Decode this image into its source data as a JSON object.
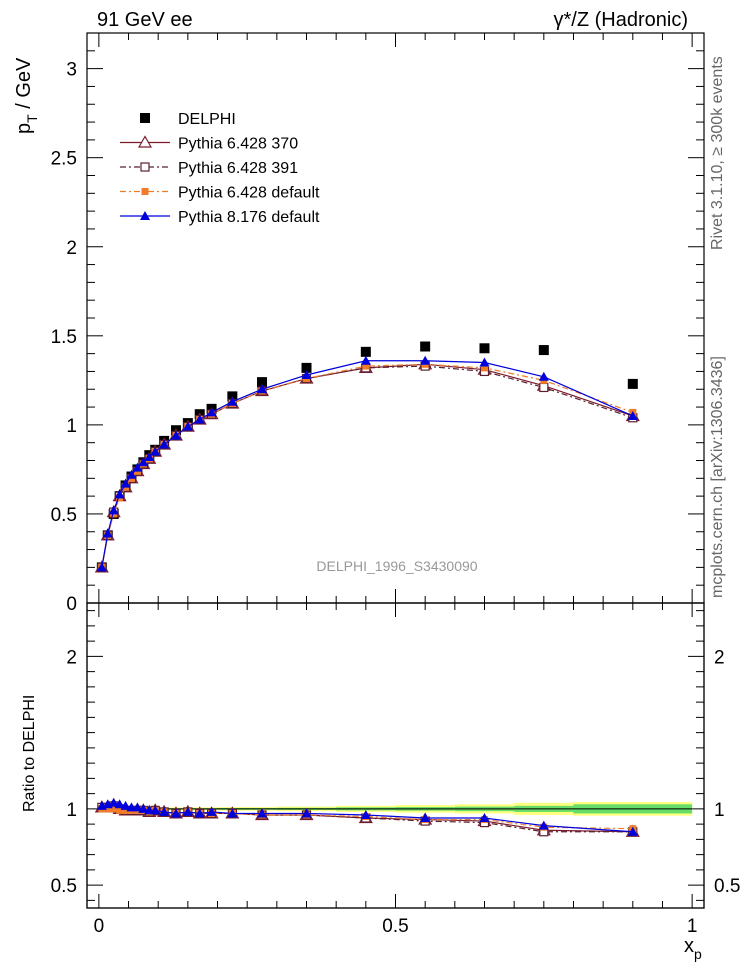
{
  "header": {
    "left": "91 GeV ee",
    "right": "γ*/Z (Hadronic)"
  },
  "side_text": {
    "rivet": "Rivet 3.1.10, ≥ 300k events",
    "mcplots": "mcplots.cern.ch [arXiv:1306.3436]"
  },
  "watermark": "DELPHI_1996_S3430090",
  "colors": {
    "data": "#000000",
    "p370": "#7b1c2c",
    "p391": "#5a2030",
    "p6def": "#f07c2a",
    "p8def": "#0000dd",
    "band_outer": "#ffff80",
    "band_inner": "#66dd66"
  },
  "chart_data": [
    {
      "type": "line",
      "panel": "main",
      "title": "",
      "xlabel": "x_p",
      "ylabel": "p_T / GeV",
      "xlim": [
        -0.02,
        1.02
      ],
      "ylim": [
        0,
        3.2
      ],
      "yticks": [
        0,
        0.5,
        1,
        1.5,
        2,
        2.5,
        3
      ],
      "ytick_labels": [
        "0",
        "0.5",
        "1",
        "1.5",
        "2",
        "2.5",
        "3"
      ],
      "legend_position": "top-left",
      "x": [
        0.005,
        0.015,
        0.025,
        0.035,
        0.045,
        0.055,
        0.065,
        0.075,
        0.085,
        0.095,
        0.11,
        0.13,
        0.15,
        0.17,
        0.19,
        0.225,
        0.275,
        0.35,
        0.45,
        0.55,
        0.65,
        0.75,
        0.9
      ],
      "series": [
        {
          "name": "DELPHI",
          "marker": "filled-square",
          "values": [
            0.2,
            0.38,
            0.5,
            0.6,
            0.66,
            0.71,
            0.75,
            0.79,
            0.83,
            0.86,
            0.91,
            0.97,
            1.01,
            1.06,
            1.09,
            1.16,
            1.24,
            1.32,
            1.41,
            1.44,
            1.43,
            1.42,
            1.23
          ]
        },
        {
          "name": "Pythia 6.428 370",
          "marker": "open-triangle",
          "values": [
            0.2,
            0.38,
            0.51,
            0.6,
            0.65,
            0.7,
            0.74,
            0.78,
            0.81,
            0.85,
            0.89,
            0.94,
            0.99,
            1.03,
            1.06,
            1.12,
            1.19,
            1.26,
            1.32,
            1.34,
            1.31,
            1.22,
            1.05
          ]
        },
        {
          "name": "Pythia 6.428 391",
          "marker": "open-square",
          "values": [
            0.2,
            0.38,
            0.51,
            0.6,
            0.65,
            0.7,
            0.74,
            0.78,
            0.81,
            0.85,
            0.89,
            0.94,
            0.99,
            1.03,
            1.06,
            1.12,
            1.19,
            1.26,
            1.32,
            1.33,
            1.3,
            1.21,
            1.04
          ]
        },
        {
          "name": "Pythia 6.428 default",
          "marker": "filled-square-small",
          "values": [
            0.2,
            0.38,
            0.5,
            0.59,
            0.65,
            0.7,
            0.74,
            0.78,
            0.81,
            0.85,
            0.89,
            0.94,
            0.99,
            1.03,
            1.06,
            1.12,
            1.19,
            1.26,
            1.33,
            1.34,
            1.32,
            1.25,
            1.07
          ]
        },
        {
          "name": "Pythia 8.176 default",
          "marker": "filled-triangle",
          "values": [
            0.2,
            0.39,
            0.52,
            0.61,
            0.67,
            0.72,
            0.76,
            0.79,
            0.82,
            0.85,
            0.89,
            0.94,
            0.99,
            1.03,
            1.07,
            1.13,
            1.2,
            1.28,
            1.36,
            1.36,
            1.35,
            1.27,
            1.05
          ]
        }
      ]
    },
    {
      "type": "line",
      "panel": "ratio",
      "xlabel": "x_p",
      "ylabel": "Ratio to DELPHI",
      "xlim": [
        -0.02,
        1.02
      ],
      "ylim": [
        0.35,
        2.35
      ],
      "yticks": [
        0.5,
        1,
        2
      ],
      "ytick_labels": [
        "0.5",
        "1",
        "2"
      ],
      "xticks": [
        0,
        0.5,
        1
      ],
      "xtick_labels": [
        "0",
        "0.5",
        "1"
      ],
      "x": [
        0.005,
        0.015,
        0.025,
        0.035,
        0.045,
        0.055,
        0.065,
        0.075,
        0.085,
        0.095,
        0.11,
        0.13,
        0.15,
        0.17,
        0.19,
        0.225,
        0.275,
        0.35,
        0.45,
        0.55,
        0.65,
        0.75,
        0.9
      ],
      "uncertainty_band": {
        "bins": [
          [
            0.0,
            0.2,
            0.01,
            0.005
          ],
          [
            0.2,
            0.3,
            0.012,
            0.006
          ],
          [
            0.3,
            0.4,
            0.015,
            0.007
          ],
          [
            0.4,
            0.5,
            0.02,
            0.01
          ],
          [
            0.5,
            0.6,
            0.025,
            0.012
          ],
          [
            0.6,
            0.7,
            0.03,
            0.015
          ],
          [
            0.7,
            0.8,
            0.04,
            0.02
          ],
          [
            0.8,
            1.0,
            0.045,
            0.03
          ]
        ],
        "columns": [
          "x_low",
          "x_high",
          "outer_halfwidth",
          "inner_halfwidth"
        ]
      },
      "series": [
        {
          "name": "Pythia 6.428 370",
          "values": [
            1.01,
            1.01,
            1.02,
            1.0,
            0.99,
            0.99,
            0.99,
            0.99,
            0.98,
            0.99,
            0.98,
            0.97,
            0.98,
            0.97,
            0.97,
            0.97,
            0.96,
            0.96,
            0.94,
            0.93,
            0.92,
            0.86,
            0.85
          ]
        },
        {
          "name": "Pythia 6.428 391",
          "values": [
            1.01,
            1.01,
            1.02,
            1.0,
            0.99,
            0.99,
            0.99,
            0.99,
            0.98,
            0.99,
            0.98,
            0.97,
            0.98,
            0.97,
            0.97,
            0.97,
            0.96,
            0.96,
            0.94,
            0.92,
            0.91,
            0.85,
            0.85
          ]
        },
        {
          "name": "Pythia 6.428 default",
          "values": [
            1.0,
            1.0,
            1.0,
            0.99,
            0.99,
            0.99,
            0.99,
            0.99,
            0.98,
            0.99,
            0.98,
            0.97,
            0.98,
            0.97,
            0.97,
            0.97,
            0.96,
            0.96,
            0.95,
            0.93,
            0.93,
            0.88,
            0.87
          ]
        },
        {
          "name": "Pythia 8.176 default",
          "values": [
            1.02,
            1.03,
            1.04,
            1.03,
            1.02,
            1.01,
            1.01,
            1.0,
            0.99,
            0.99,
            0.98,
            0.97,
            0.98,
            0.97,
            0.98,
            0.97,
            0.97,
            0.97,
            0.96,
            0.94,
            0.94,
            0.89,
            0.85
          ]
        }
      ]
    }
  ]
}
